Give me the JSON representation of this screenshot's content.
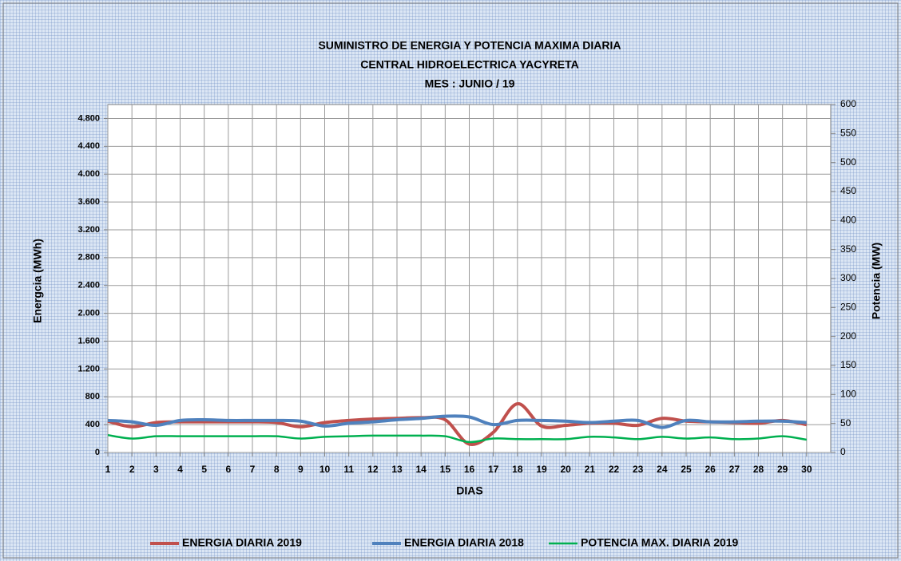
{
  "chart_data": {
    "type": "line",
    "title": [
      "SUMINISTRO DE ENERGIA Y POTENCIA MAXIMA DIARIA",
      "CENTRAL HIDROELECTRICA YACYRETA",
      "MES :  JUNIO / 19"
    ],
    "xlabel": "DIAS",
    "ylabel": "Energcia (MWh)",
    "y2label": "Potencia (MW)",
    "x": [
      1,
      2,
      3,
      4,
      5,
      6,
      7,
      8,
      9,
      10,
      11,
      12,
      13,
      14,
      15,
      16,
      17,
      18,
      19,
      20,
      21,
      22,
      23,
      24,
      25,
      26,
      27,
      28,
      29,
      30
    ],
    "xlim": [
      1,
      31
    ],
    "xticks": [
      1,
      2,
      3,
      4,
      5,
      6,
      7,
      8,
      9,
      10,
      11,
      12,
      13,
      14,
      15,
      16,
      17,
      18,
      19,
      20,
      21,
      22,
      23,
      24,
      25,
      26,
      27,
      28,
      29,
      30
    ],
    "ylim": [
      0,
      5000
    ],
    "yticks": [
      0,
      {
        "value": 400,
        "label": "400"
      },
      800,
      {
        "value": 1200,
        "label": "1.200"
      },
      {
        "value": 1600,
        "label": "1.600"
      },
      {
        "value": 2000,
        "label": "2.000"
      },
      {
        "value": 2400,
        "label": "2.400"
      },
      {
        "value": 2800,
        "label": "2.800"
      },
      {
        "value": 3200,
        "label": "3.200"
      },
      {
        "value": 3600,
        "label": "3.600"
      },
      {
        "value": 4000,
        "label": "4.000"
      },
      {
        "value": 4400,
        "label": "4.400"
      },
      {
        "value": 4800,
        "label": "4.800"
      }
    ],
    "y2lim": [
      0,
      600
    ],
    "y2ticks": [
      0,
      50,
      100,
      150,
      200,
      250,
      300,
      350,
      400,
      450,
      500,
      550,
      600
    ],
    "grid": true,
    "legend": "bottom",
    "series": [
      {
        "name": "ENERGIA DIARIA 2019",
        "color": "#c0504d",
        "values": [
          450,
          370,
          430,
          440,
          440,
          440,
          440,
          430,
          370,
          430,
          460,
          480,
          490,
          500,
          470,
          120,
          290,
          700,
          380,
          390,
          420,
          420,
          390,
          490,
          450,
          440,
          430,
          420,
          460,
          400
        ]
      },
      {
        "name": "ENERGIA DIARIA 2018",
        "color": "#4f81bd",
        "values": [
          460,
          440,
          390,
          460,
          470,
          460,
          460,
          460,
          450,
          380,
          420,
          440,
          470,
          490,
          520,
          510,
          400,
          460,
          460,
          450,
          430,
          450,
          460,
          360,
          460,
          440,
          440,
          450,
          450,
          430
        ]
      },
      {
        "name": "POTENCIA MAX. DIARIA 2019",
        "color": "#00b050",
        "axis": "y2",
        "values": [
          30,
          24,
          28,
          28,
          28,
          28,
          28,
          28,
          24,
          27,
          28,
          29,
          29,
          29,
          28,
          18,
          24,
          23,
          23,
          23,
          27,
          26,
          23,
          27,
          24,
          26,
          23,
          24,
          28,
          22
        ]
      }
    ]
  }
}
